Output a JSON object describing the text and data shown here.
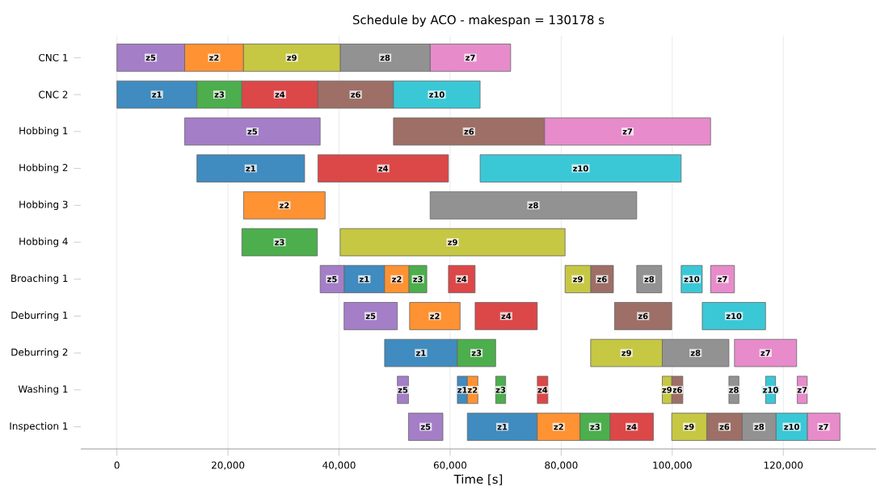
{
  "chart_data": {
    "type": "bar",
    "orientation": "horizontal",
    "title": "Schedule by ACO - makespan = 130178 s",
    "xlabel": "Time [s]",
    "categories": [
      "CNC 1",
      "CNC 2",
      "Hobbing 1",
      "Hobbing 2",
      "Hobbing 3",
      "Hobbing 4",
      "Broaching 1",
      "Deburring 1",
      "Deburring 2",
      "Washing 1",
      "Inspection 1"
    ],
    "xlim": [
      -6500,
      136700
    ],
    "xticks": [
      {
        "value": 0,
        "label": "0"
      },
      {
        "value": 20000,
        "label": "20,000"
      },
      {
        "value": 40000,
        "label": "40,000"
      },
      {
        "value": 60000,
        "label": "60,000"
      },
      {
        "value": 80000,
        "label": "80,000"
      },
      {
        "value": 100000,
        "label": "100,000"
      },
      {
        "value": 120000,
        "label": "120,000"
      }
    ],
    "grid": "x",
    "series": [
      {
        "name": "z1",
        "color": "#408bbf",
        "base": [
          null,
          0,
          null,
          14400,
          null,
          null,
          40900,
          null,
          48200,
          61300,
          63100
        ],
        "values": [
          null,
          14400,
          null,
          19400,
          null,
          null,
          7300,
          null,
          13100,
          1800,
          12600
        ]
      },
      {
        "name": "z2",
        "color": "#ff9232",
        "base": [
          12200,
          null,
          null,
          null,
          22800,
          null,
          48200,
          52700,
          null,
          63100,
          75700
        ],
        "values": [
          10600,
          null,
          null,
          null,
          14700,
          null,
          4400,
          9100,
          null,
          1900,
          7700
        ]
      },
      {
        "name": "z3",
        "color": "#4cae4c",
        "base": [
          null,
          14400,
          null,
          null,
          null,
          22500,
          52600,
          null,
          61300,
          68200,
          83400
        ],
        "values": [
          null,
          8100,
          null,
          null,
          null,
          13600,
          3200,
          null,
          6900,
          1800,
          5400
        ]
      },
      {
        "name": "z4",
        "color": "#dc4748",
        "base": [
          null,
          22500,
          null,
          36200,
          null,
          null,
          59700,
          64500,
          null,
          75700,
          88800
        ],
        "values": [
          null,
          13700,
          null,
          23500,
          null,
          null,
          4800,
          11200,
          null,
          1900,
          7800
        ]
      },
      {
        "name": "z5",
        "color": "#a47ec7",
        "base": [
          0,
          null,
          12200,
          null,
          null,
          null,
          36600,
          40900,
          null,
          50500,
          52500
        ],
        "values": [
          12200,
          null,
          24400,
          null,
          null,
          null,
          4300,
          9600,
          null,
          2000,
          6200
        ]
      },
      {
        "name": "z6",
        "color": "#9d6f66",
        "base": [
          null,
          36200,
          49800,
          null,
          null,
          null,
          85300,
          89600,
          null,
          99900,
          106200
        ],
        "values": [
          null,
          13600,
          27200,
          null,
          null,
          null,
          4100,
          10300,
          null,
          2000,
          6400
        ]
      },
      {
        "name": "z7",
        "color": "#e78bcb",
        "base": [
          56400,
          null,
          77000,
          null,
          null,
          null,
          106900,
          null,
          111200,
          122500,
          124300
        ],
        "values": [
          14500,
          null,
          29900,
          null,
          null,
          null,
          4300,
          null,
          11200,
          1800,
          5900
        ]
      },
      {
        "name": "z8",
        "color": "#929292",
        "base": [
          40200,
          null,
          null,
          null,
          56400,
          null,
          93600,
          null,
          98200,
          110200,
          112600
        ],
        "values": [
          16200,
          null,
          null,
          null,
          37200,
          null,
          4500,
          null,
          12000,
          1800,
          6100
        ]
      },
      {
        "name": "z9",
        "color": "#c6c743",
        "base": [
          22800,
          null,
          null,
          null,
          null,
          40200,
          80700,
          null,
          85300,
          98200,
          99900
        ],
        "values": [
          17400,
          null,
          null,
          null,
          null,
          40500,
          4600,
          null,
          12900,
          1700,
          6300
        ]
      },
      {
        "name": "z10",
        "color": "#3ac8d6",
        "base": [
          null,
          49800,
          null,
          65400,
          null,
          null,
          101600,
          105400,
          null,
          116800,
          118700
        ],
        "values": [
          null,
          15600,
          null,
          36200,
          null,
          null,
          3800,
          11400,
          null,
          1800,
          5600
        ]
      }
    ]
  }
}
